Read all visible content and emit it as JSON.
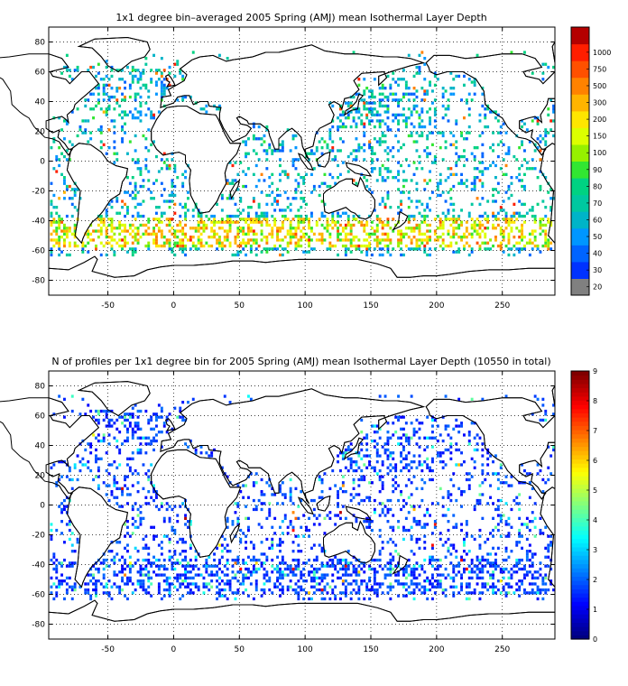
{
  "maps": [
    {
      "title": "1x1 degree bin–averaged 2005 Spring (AMJ) mean Isothermal Layer Depth",
      "xlim": [
        -95,
        290
      ],
      "ylim": [
        -90,
        90
      ],
      "xticks": [
        -50,
        0,
        50,
        100,
        150,
        200,
        250
      ],
      "yticks": [
        -80,
        -60,
        -40,
        -20,
        0,
        20,
        40,
        60,
        80
      ],
      "grid": true,
      "colorbar": {
        "labels": [
          "20",
          "30",
          "40",
          "50",
          "60",
          "70",
          "80",
          "90",
          "100",
          "150",
          "200",
          "300",
          "500",
          "750",
          "1000"
        ],
        "colors": [
          "#808080",
          "#0032ff",
          "#0064ff",
          "#0096ff",
          "#00b4c8",
          "#00c8a0",
          "#00d282",
          "#32e632",
          "#96f000",
          "#dcff00",
          "#ffe600",
          "#ffb400",
          "#ff8200",
          "#ff5000",
          "#ff1e00",
          "#b40000"
        ]
      }
    },
    {
      "title": "N of profiles per 1x1 degree bin for 2005 Spring (AMJ) mean Isothermal Layer Depth  (10550 in total)",
      "xlim": [
        -95,
        290
      ],
      "ylim": [
        -90,
        90
      ],
      "xticks": [
        -50,
        0,
        50,
        100,
        150,
        200,
        250
      ],
      "yticks": [
        -80,
        -60,
        -40,
        -20,
        0,
        20,
        40,
        60,
        80
      ],
      "grid": true,
      "colorbar": {
        "range": [
          0,
          9
        ],
        "labels": [
          "0",
          "1",
          "2",
          "3",
          "4",
          "5",
          "6",
          "7",
          "8",
          "9"
        ],
        "colormap": "jet"
      }
    }
  ]
}
